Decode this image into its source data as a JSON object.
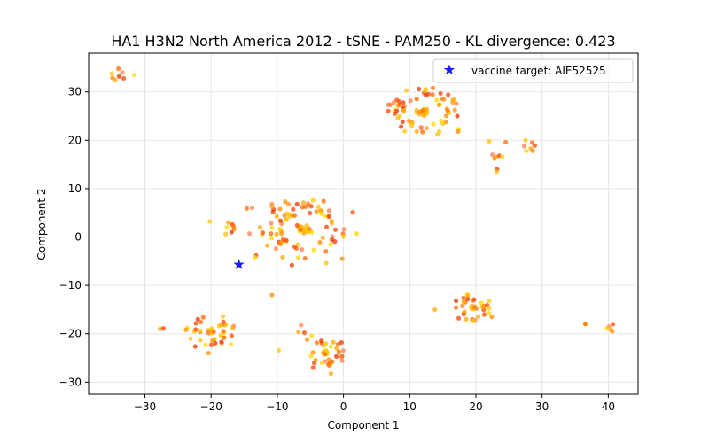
{
  "chart_data": {
    "type": "scatter",
    "title": "HA1 H3N2 North America 2012 - tSNE - PAM250 - KL divergence: 0.423",
    "xlabel": "Component 1",
    "ylabel": "Component 2",
    "xlim": [
      -38.5,
      44.5
    ],
    "ylim": [
      -32.5,
      38
    ],
    "xticks": [
      -30,
      -20,
      -10,
      0,
      10,
      20,
      30,
      40
    ],
    "yticks": [
      -30,
      -20,
      -10,
      0,
      10,
      20,
      30
    ],
    "grid": true,
    "legend_position": "top-right",
    "legend": [
      {
        "label": "vaccine target: AIE52525",
        "marker": "star",
        "color": "#0000ff"
      }
    ],
    "vaccine_target": {
      "name": "AIE52525",
      "x": -15.8,
      "y": -5.7
    },
    "clusters": [
      {
        "id": "c1",
        "cx": -34,
        "cy": 33.5,
        "points": [
          [
            -35,
            33.8
          ],
          [
            -34,
            34.8
          ],
          [
            -33.4,
            34
          ],
          [
            -34.5,
            32.5
          ],
          [
            -33.2,
            32.8
          ],
          [
            -31.6,
            33.5
          ],
          [
            -34.9,
            32.9
          ],
          [
            -33.9,
            33.2
          ]
        ]
      },
      {
        "id": "c2",
        "cx": 12,
        "cy": 26,
        "points": [
          [
            9.5,
            30.3
          ],
          [
            13.5,
            30.8
          ],
          [
            7.6,
            27.8
          ],
          [
            16.5,
            27.8
          ],
          [
            7.8,
            25.5
          ],
          [
            17.4,
            22.3
          ],
          [
            17.3,
            21.8
          ],
          [
            8.7,
            22.8
          ],
          [
            14.2,
            21.2
          ],
          [
            12,
            26.2
          ],
          [
            11.5,
            25.8
          ],
          [
            12.6,
            26.4
          ]
        ],
        "ring": {
          "r": 5,
          "n": 58
        }
      },
      {
        "id": "c3",
        "cx": 23,
        "cy": 17,
        "points": [
          [
            22,
            19.8
          ],
          [
            24.5,
            19.6
          ],
          [
            22.5,
            17
          ],
          [
            23,
            16.5
          ],
          [
            23.5,
            16.8
          ],
          [
            24,
            16.6
          ],
          [
            22.8,
            16.2
          ],
          [
            23.2,
            14
          ],
          [
            23.1,
            13.5
          ]
        ]
      },
      {
        "id": "c4",
        "cx": 28,
        "cy": 18.5,
        "points": [
          [
            27.5,
            20
          ],
          [
            28.5,
            19.5
          ],
          [
            27.3,
            18.8
          ],
          [
            28.3,
            18.3
          ],
          [
            28.9,
            18.9
          ],
          [
            27.6,
            17.8
          ],
          [
            28.6,
            17.8
          ]
        ]
      },
      {
        "id": "c5",
        "cx": -6,
        "cy": 1.5,
        "points": [
          [
            -5.8,
            1.2
          ],
          [
            -6.5,
            1.5
          ],
          [
            -5.2,
            1.7
          ],
          [
            -6,
            0.8
          ],
          [
            -7,
            2.4
          ],
          [
            -4.8,
            1
          ],
          [
            -8.8,
            7.3
          ],
          [
            -7,
            6.8
          ],
          [
            -4.6,
            7.6
          ],
          [
            -3,
            7.4
          ],
          [
            -10.8,
            6.8
          ],
          [
            -10.8,
            6.3
          ],
          [
            1.4,
            5.1
          ],
          [
            2,
            0.7
          ],
          [
            -0.2,
            -4.5
          ],
          [
            -7.8,
            -5.8
          ],
          [
            -2.6,
            -5.4
          ],
          [
            -5.8,
            -4.4
          ],
          [
            -10.2,
            -2.4
          ],
          [
            -9.2,
            -4.2
          ]
        ],
        "ring": {
          "r": 6,
          "n": 70
        }
      },
      {
        "id": "c6",
        "cx": -16,
        "cy": 2,
        "points": [
          [
            -20.2,
            3.2
          ],
          [
            -14.6,
            5.9
          ],
          [
            -13.8,
            6
          ],
          [
            -17.4,
            3
          ],
          [
            -16.8,
            2.6
          ],
          [
            -17.6,
            2
          ],
          [
            -16.5,
            1.6
          ],
          [
            -16.9,
            1
          ],
          [
            -17.8,
            0.6
          ],
          [
            -16.6,
            2.2
          ],
          [
            -14.2,
            0.7
          ],
          [
            -12.6,
            2
          ],
          [
            -13.2,
            -3.8
          ],
          [
            -13.4,
            -4.2
          ],
          [
            -10.8,
            -12
          ]
        ]
      },
      {
        "id": "c7",
        "cx": 19.5,
        "cy": -14.5,
        "points": [
          [
            19.4,
            -14.4
          ],
          [
            19.8,
            -14.5
          ],
          [
            20.1,
            -14.8
          ],
          [
            13.8,
            -15
          ],
          [
            17.4,
            -16.8
          ],
          [
            19.5,
            -17.3
          ],
          [
            22.4,
            -16.5
          ],
          [
            17,
            -13.2
          ],
          [
            22,
            -13.2
          ]
        ],
        "ring": {
          "r": 2.6,
          "n": 26
        }
      },
      {
        "id": "c8",
        "cx": -20,
        "cy": -19.5,
        "points": [
          [
            -20,
            -19.3
          ],
          [
            -19.6,
            -19.6
          ],
          [
            -20.4,
            -19.8
          ],
          [
            -27.7,
            -19
          ],
          [
            -27.2,
            -18.9
          ],
          [
            -23.6,
            -18.8
          ],
          [
            -23.8,
            -19.2
          ],
          [
            -22,
            -17
          ],
          [
            -18.2,
            -16.4
          ],
          [
            -21.2,
            -16.6
          ],
          [
            -16.6,
            -18.4
          ],
          [
            -16.7,
            -18.8
          ],
          [
            -16.9,
            -20.4
          ],
          [
            -17,
            -22.2
          ],
          [
            -20.4,
            -24
          ],
          [
            -22.4,
            -22.6
          ],
          [
            -23.1,
            -21
          ]
        ],
        "ring": {
          "r": 2.8,
          "n": 26
        }
      },
      {
        "id": "c9",
        "cx": -2.6,
        "cy": -24,
        "points": [
          [
            -2.5,
            -23.8
          ],
          [
            -2.8,
            -24.2
          ],
          [
            -6.4,
            -18.2
          ],
          [
            -6.8,
            -19.6
          ],
          [
            -5.9,
            -19.8
          ],
          [
            -4.8,
            -20.4
          ],
          [
            -5.5,
            -21.2
          ],
          [
            -0.3,
            -21.8
          ],
          [
            -9.8,
            -23.4
          ],
          [
            -0.2,
            -24.6
          ],
          [
            -0.2,
            -25.6
          ],
          [
            -1.9,
            -28.2
          ],
          [
            -4.6,
            -27
          ],
          [
            -4.9,
            -24.6
          ]
        ],
        "ring": {
          "r": 2.6,
          "n": 24
        }
      },
      {
        "id": "c10",
        "cx": 40,
        "cy": -18.5,
        "points": [
          [
            36.6,
            -18
          ],
          [
            36.5,
            -17.9
          ],
          [
            40.1,
            -18.5
          ],
          [
            40.4,
            -19.2
          ],
          [
            40.7,
            -18
          ],
          [
            39.8,
            -18.9
          ],
          [
            40.6,
            -19.5
          ]
        ]
      }
    ]
  }
}
